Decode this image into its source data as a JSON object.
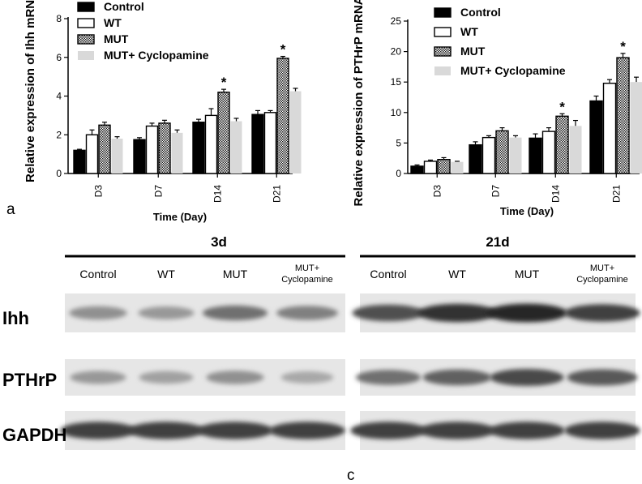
{
  "panel_labels": {
    "a": "a",
    "c": "c"
  },
  "colors": {
    "control": "#000000",
    "wt": "#ffffff",
    "mut": "#8a8a8a",
    "mut_cyclopamine": "#d9d9d9",
    "blot_bg": "#e6e6e6",
    "band": "#3c3c3c"
  },
  "chart_data": [
    {
      "type": "bar",
      "ylabel": "Relative expression of Ihh mRNA",
      "xlabel": "Time (Day)",
      "categories": [
        "D3",
        "D7",
        "D14",
        "D21"
      ],
      "ylim": [
        0,
        8
      ],
      "yticks": [
        0,
        2,
        4,
        6,
        8
      ],
      "legend": "top-left",
      "grid": false,
      "series": [
        {
          "name": "Control",
          "values": [
            1.2,
            1.75,
            2.65,
            3.05
          ],
          "errors": [
            0.05,
            0.1,
            0.15,
            0.2
          ]
        },
        {
          "name": "WT",
          "values": [
            2.0,
            2.45,
            3.0,
            3.15
          ],
          "errors": [
            0.25,
            0.15,
            0.35,
            0.1
          ]
        },
        {
          "name": "MUT",
          "values": [
            2.5,
            2.6,
            4.2,
            5.95
          ],
          "errors": [
            0.15,
            0.15,
            0.15,
            0.1
          ]
        },
        {
          "name": "MUT+ Cyclopamine",
          "values": [
            1.8,
            2.1,
            2.7,
            4.25
          ],
          "errors": [
            0.1,
            0.15,
            0.15,
            0.15
          ]
        }
      ],
      "annotations": [
        {
          "text": "*",
          "category": "D14",
          "series": "MUT"
        },
        {
          "text": "*",
          "category": "D21",
          "series": "MUT"
        }
      ]
    },
    {
      "type": "bar",
      "ylabel": "Relative expression of PTHrP mRNA",
      "xlabel": "Time (Day)",
      "categories": [
        "D3",
        "D7",
        "D14",
        "D21"
      ],
      "ylim": [
        0,
        25
      ],
      "yticks": [
        0,
        5,
        10,
        15,
        20,
        25
      ],
      "legend": "top-left",
      "grid": false,
      "series": [
        {
          "name": "Control",
          "values": [
            1.2,
            4.7,
            5.8,
            11.9
          ],
          "errors": [
            0.2,
            0.5,
            0.7,
            0.8
          ]
        },
        {
          "name": "WT",
          "values": [
            2.0,
            5.9,
            6.9,
            14.8
          ],
          "errors": [
            0.2,
            0.3,
            0.6,
            0.6
          ]
        },
        {
          "name": "MUT",
          "values": [
            2.3,
            7.0,
            9.4,
            19.0
          ],
          "errors": [
            0.3,
            0.5,
            0.4,
            0.7
          ]
        },
        {
          "name": "MUT+ Cyclopamine",
          "values": [
            1.9,
            5.9,
            7.8,
            15.0
          ],
          "errors": [
            0.1,
            0.3,
            0.9,
            0.8
          ]
        }
      ],
      "annotations": [
        {
          "text": "*",
          "category": "D14",
          "series": "MUT"
        },
        {
          "text": "*",
          "category": "D21",
          "series": "MUT"
        }
      ]
    }
  ],
  "western_blot": {
    "groups": [
      {
        "title": "3d",
        "columns": [
          "Control",
          "WT",
          "MUT",
          "MUT+\nCyclopamine"
        ]
      },
      {
        "title": "21d",
        "columns": [
          "Control",
          "WT",
          "MUT",
          "MUT+\nCyclopamine"
        ]
      }
    ],
    "rows": [
      {
        "label": "Ihh",
        "intensities": [
          [
            0.35,
            0.3,
            0.55,
            0.45
          ],
          [
            0.75,
            0.95,
            1.0,
            0.85
          ]
        ]
      },
      {
        "label": "PTHrP",
        "intensities": [
          [
            0.3,
            0.25,
            0.35,
            0.2
          ],
          [
            0.55,
            0.65,
            0.8,
            0.7
          ]
        ]
      },
      {
        "label": "GAPDH",
        "intensities": [
          [
            0.85,
            0.85,
            0.85,
            0.85
          ],
          [
            0.85,
            0.85,
            0.85,
            0.85
          ]
        ]
      }
    ]
  }
}
